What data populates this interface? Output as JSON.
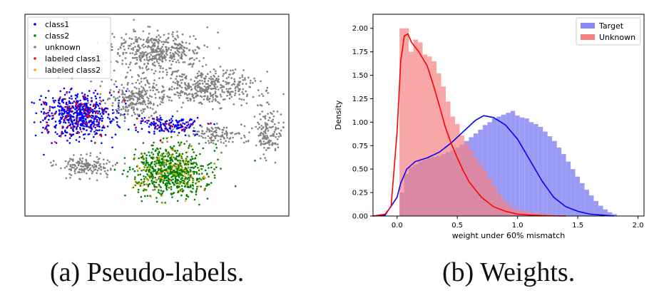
{
  "captions": {
    "a": "(a) Pseudo-labels.",
    "b": "(b) Weights."
  },
  "chart_data": [
    {
      "type": "scatter",
      "title": "",
      "xlabel": "",
      "ylabel": "",
      "axes_ticks": false,
      "legend": {
        "placement": "top-left",
        "entries": [
          {
            "name": "class1",
            "color": "#0000ff"
          },
          {
            "name": "class2",
            "color": "#008000"
          },
          {
            "name": "unknown",
            "color": "#808080"
          },
          {
            "name": "labeled class1",
            "color": "#ff0000"
          },
          {
            "name": "labeled class2",
            "color": "#ffa500"
          }
        ]
      },
      "clusters": [
        {
          "label": "unknown",
          "center": [
            0.5,
            0.18
          ],
          "spread": [
            0.17,
            0.09
          ],
          "count": 420
        },
        {
          "label": "unknown",
          "center": [
            0.68,
            0.36
          ],
          "spread": [
            0.2,
            0.09
          ],
          "count": 420
        },
        {
          "label": "unknown",
          "center": [
            0.42,
            0.42
          ],
          "spread": [
            0.12,
            0.1
          ],
          "count": 260
        },
        {
          "label": "unknown",
          "center": [
            0.92,
            0.58
          ],
          "spread": [
            0.05,
            0.12
          ],
          "count": 140
        },
        {
          "label": "unknown",
          "center": [
            0.23,
            0.75
          ],
          "spread": [
            0.1,
            0.05
          ],
          "count": 160
        },
        {
          "label": "unknown",
          "center": [
            0.72,
            0.6
          ],
          "spread": [
            0.12,
            0.05
          ],
          "count": 120
        },
        {
          "label": "class1",
          "center": [
            0.2,
            0.5
          ],
          "spread": [
            0.13,
            0.11
          ],
          "count": 620
        },
        {
          "label": "class1",
          "center": [
            0.55,
            0.55
          ],
          "spread": [
            0.13,
            0.04
          ],
          "count": 160
        },
        {
          "label": "class2",
          "center": [
            0.55,
            0.78
          ],
          "spread": [
            0.15,
            0.12
          ],
          "count": 720
        }
      ],
      "labeled_fraction": 0.14
    },
    {
      "type": "histogram+kde",
      "title": "",
      "xlabel": "weight under 60% mismatch",
      "ylabel": "Density",
      "xlim": [
        -0.2,
        2.05
      ],
      "ylim": [
        0,
        2.15
      ],
      "xticks": [
        0.0,
        0.5,
        1.0,
        1.5,
        2.0
      ],
      "xtick_labels": [
        "0.0",
        "0.5",
        "1.0",
        "1.5",
        "2.0"
      ],
      "yticks": [
        0,
        0.25,
        0.5,
        0.75,
        1.0,
        1.25,
        1.5,
        1.75,
        2.0
      ],
      "ytick_labels": [
        "0.00",
        "0.25",
        "0.50",
        "0.75",
        "1.00",
        "1.25",
        "1.50",
        "1.75",
        "2.00"
      ],
      "legend": {
        "placement": "top-right"
      },
      "bin_width": 0.0384,
      "series": [
        {
          "name": "Target",
          "color": "#0000ff",
          "hist_fill": "#8a8af5",
          "bins_start": 0.02,
          "hist": [
            0.25,
            0.45,
            0.52,
            0.55,
            0.58,
            0.6,
            0.62,
            0.63,
            0.64,
            0.66,
            0.68,
            0.7,
            0.73,
            0.76,
            0.8,
            0.84,
            0.88,
            0.92,
            0.97,
            1.0,
            1.04,
            1.06,
            1.08,
            1.1,
            1.12,
            1.07,
            1.05,
            1.04,
            1.0,
            0.98,
            0.95,
            0.9,
            0.85,
            0.8,
            0.73,
            0.66,
            0.58,
            0.5,
            0.42,
            0.35,
            0.28,
            0.22,
            0.16,
            0.11,
            0.07,
            0.04,
            0.02
          ],
          "kde_x": [
            -0.2,
            -0.1,
            0.0,
            0.03,
            0.08,
            0.15,
            0.25,
            0.35,
            0.45,
            0.55,
            0.65,
            0.72,
            0.8,
            0.9,
            1.0,
            1.1,
            1.2,
            1.3,
            1.4,
            1.5,
            1.6,
            1.7,
            1.8
          ],
          "kde_y": [
            0.0,
            0.01,
            0.2,
            0.35,
            0.5,
            0.58,
            0.62,
            0.68,
            0.78,
            0.9,
            1.02,
            1.07,
            1.05,
            0.97,
            0.82,
            0.6,
            0.38,
            0.2,
            0.1,
            0.05,
            0.02,
            0.01,
            0.0
          ]
        },
        {
          "name": "Unknown",
          "color": "#ff0000",
          "hist_fill": "#f58080",
          "bins_start": 0.02,
          "hist": [
            2.0,
            2.0,
            1.75,
            1.88,
            1.85,
            1.72,
            1.7,
            1.65,
            1.52,
            1.38,
            1.22,
            1.06,
            0.98,
            0.86,
            0.78,
            0.7,
            0.62,
            0.55,
            0.48,
            0.4,
            0.32,
            0.24,
            0.18,
            0.13,
            0.09,
            0.07,
            0.06,
            0.05,
            0.04,
            0.03,
            0.03,
            0.02,
            0.02,
            0.01
          ],
          "kde_x": [
            -0.2,
            -0.1,
            -0.05,
            0.0,
            0.03,
            0.06,
            0.09,
            0.12,
            0.18,
            0.25,
            0.3,
            0.35,
            0.4,
            0.45,
            0.5,
            0.55,
            0.6,
            0.7,
            0.8,
            0.9,
            1.0,
            1.1,
            1.2,
            1.3,
            1.4
          ],
          "kde_y": [
            0.0,
            0.02,
            0.1,
            0.9,
            1.65,
            1.92,
            1.94,
            1.85,
            1.75,
            1.6,
            1.4,
            1.18,
            0.95,
            0.77,
            0.62,
            0.48,
            0.36,
            0.2,
            0.1,
            0.05,
            0.02,
            0.01,
            0.005,
            0.002,
            0.0
          ]
        }
      ]
    }
  ]
}
